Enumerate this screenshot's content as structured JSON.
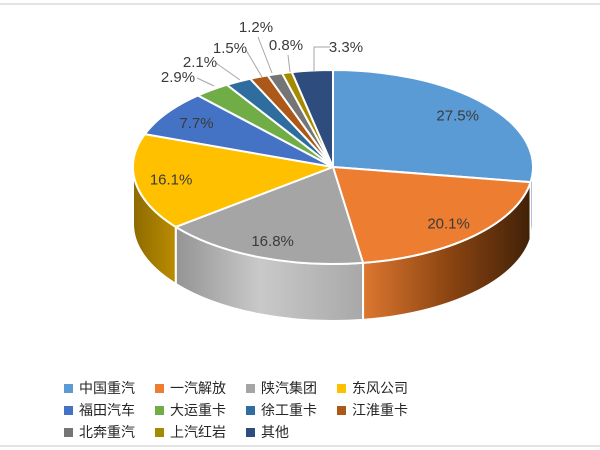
{
  "page": {
    "background": "#FFFFFF",
    "rule_color": "#E4E4E4"
  },
  "chart_data": {
    "type": "pie",
    "is_3d": true,
    "title": "",
    "legend_position": "bottom",
    "start_angle_deg": 0,
    "direction": "clockwise",
    "data_labels": "percent",
    "label_color": "#3B3B3B",
    "leader_line_color": "#A6A6A6",
    "series": [
      {
        "name": "中国重汽",
        "value": 27.5,
        "label": "27.5%",
        "color": "#5B9BD5"
      },
      {
        "name": "一汽解放",
        "value": 20.1,
        "label": "20.1%",
        "color": "#ED7D31"
      },
      {
        "name": "陕汽集团",
        "value": 16.8,
        "label": "16.8%",
        "color": "#A5A5A5"
      },
      {
        "name": "东风公司",
        "value": 16.1,
        "label": "16.1%",
        "color": "#FFC000"
      },
      {
        "name": "福田汽车",
        "value": 7.7,
        "label": "7.7%",
        "color": "#4472C4"
      },
      {
        "name": "大运重卡",
        "value": 2.9,
        "label": "2.9%",
        "color": "#70AD47"
      },
      {
        "name": "徐工重卡",
        "value": 2.1,
        "label": "2.1%",
        "color": "#2E6D9E"
      },
      {
        "name": "江淮重卡",
        "value": 1.5,
        "label": "1.5%",
        "color": "#AC5818"
      },
      {
        "name": "北奔重汽",
        "value": 1.2,
        "label": "1.2%",
        "color": "#757575"
      },
      {
        "name": "上汽红岩",
        "value": 0.8,
        "label": "0.8%",
        "color": "#A58A00"
      },
      {
        "name": "其他",
        "value": 3.3,
        "label": "3.3%",
        "color": "#2E4C7E"
      }
    ]
  }
}
